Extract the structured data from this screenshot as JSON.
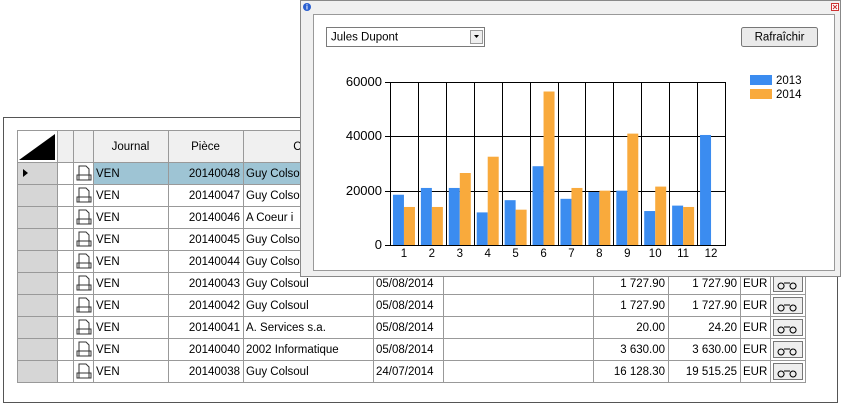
{
  "table": {
    "columns": {
      "journal": "Journal",
      "piece": "Pièce",
      "client": "Client"
    },
    "rows": [
      {
        "journal": "VEN",
        "piece": "20140048",
        "client": "Guy Colsoul"
      },
      {
        "journal": "VEN",
        "piece": "20140047",
        "client": "Guy Colsoul"
      },
      {
        "journal": "VEN",
        "piece": "20140046",
        "client": "A Coeur i"
      },
      {
        "journal": "VEN",
        "piece": "20140045",
        "client": "Guy Colsoul"
      },
      {
        "journal": "VEN",
        "piece": "20140044",
        "client": "Guy Colsoul"
      },
      {
        "journal": "VEN",
        "piece": "20140043",
        "client": "Guy Colsoul",
        "date": "05/08/2014",
        "htva": "1 727.90",
        "tvac": "1 727.90",
        "currency": "EUR"
      },
      {
        "journal": "VEN",
        "piece": "20140042",
        "client": "Guy Colsoul",
        "date": "05/08/2014",
        "htva": "1 727.90",
        "tvac": "1 727.90",
        "currency": "EUR"
      },
      {
        "journal": "VEN",
        "piece": "20140041",
        "client": "A. Services s.a.",
        "date": "05/08/2014",
        "htva": "20.00",
        "tvac": "24.20",
        "currency": "EUR"
      },
      {
        "journal": "VEN",
        "piece": "20140040",
        "client": "2002 Informatique",
        "date": "05/08/2014",
        "htva": "3 630.00",
        "tvac": "3 630.00",
        "currency": "EUR"
      },
      {
        "journal": "VEN",
        "piece": "20140038",
        "client": "Guy Colsoul",
        "date": "24/07/2014",
        "htva": "16 128.30",
        "tvac": "19 515.25",
        "currency": "EUR"
      }
    ]
  },
  "popup": {
    "selector": "Jules Dupont",
    "button": "Rafraîchir"
  },
  "chart_data": {
    "type": "bar",
    "categories": [
      "1",
      "2",
      "3",
      "4",
      "5",
      "6",
      "7",
      "8",
      "9",
      "10",
      "11",
      "12"
    ],
    "series": [
      {
        "name": "2013",
        "color": "#3b8cf0",
        "values": [
          18500,
          21000,
          21000,
          12000,
          16500,
          29000,
          17000,
          19500,
          20000,
          12500,
          14500,
          40500
        ]
      },
      {
        "name": "2014",
        "color": "#f9aa3c",
        "values": [
          14000,
          14000,
          26500,
          32500,
          13000,
          56500,
          21000,
          20000,
          41000,
          21500,
          14000,
          null
        ]
      }
    ],
    "ylim": [
      0,
      60000
    ],
    "yticks": [
      0,
      20000,
      40000,
      60000
    ],
    "grid": true,
    "legend": "right"
  }
}
